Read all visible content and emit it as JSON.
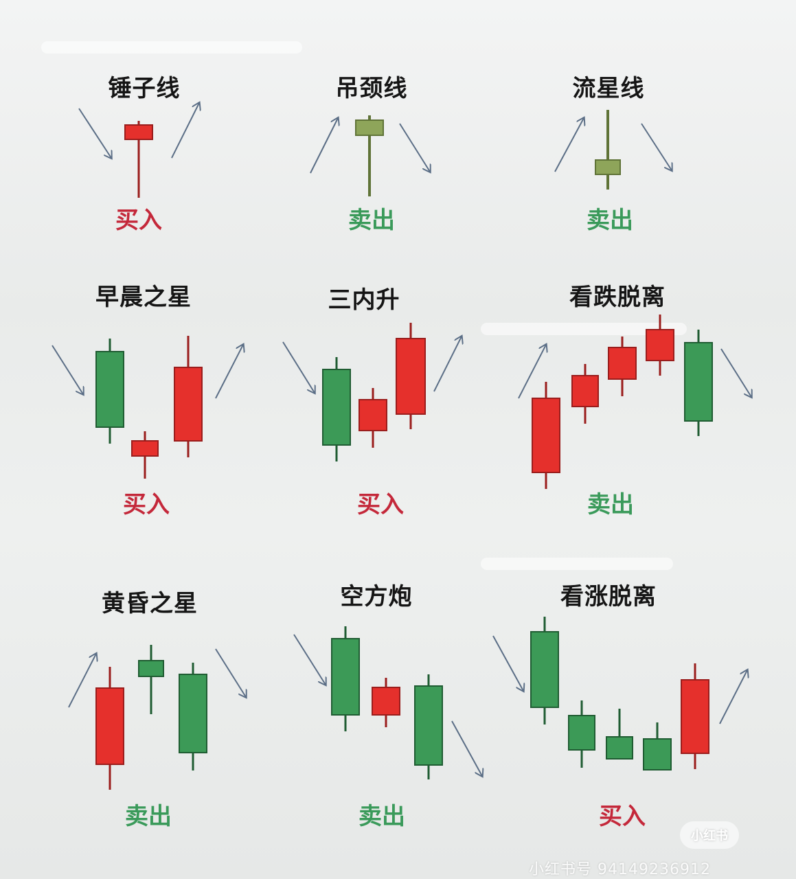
{
  "colors": {
    "bull_red": "#e5302c",
    "bull_red_border": "#9a1d1c",
    "bear_green": "#3c9a57",
    "bear_green_border": "#1f5c32",
    "star_olive": "#8ea55a",
    "arrow": "#5b6e86",
    "buy_text": "#c4283a",
    "sell_text": "#3a9a5a"
  },
  "patterns": [
    {
      "title": "锤子线",
      "signal": "买入",
      "signal_type": "buy"
    },
    {
      "title": "吊颈线",
      "signal": "卖出",
      "signal_type": "sell"
    },
    {
      "title": "流星线",
      "signal": "卖出",
      "signal_type": "sell"
    },
    {
      "title": "早晨之星",
      "signal": "买入",
      "signal_type": "buy"
    },
    {
      "title": "三内升",
      "signal": "买入",
      "signal_type": "buy"
    },
    {
      "title": "看跌脱离",
      "signal": "卖出",
      "signal_type": "sell"
    },
    {
      "title": "黄昏之星",
      "signal": "卖出",
      "signal_type": "sell"
    },
    {
      "title": "空方炮",
      "signal": "卖出",
      "signal_type": "sell"
    },
    {
      "title": "看涨脱离",
      "signal": "买入",
      "signal_type": "buy"
    }
  ],
  "watermark": {
    "badge": "小红书",
    "id_text": "小红书号 94149236912"
  }
}
